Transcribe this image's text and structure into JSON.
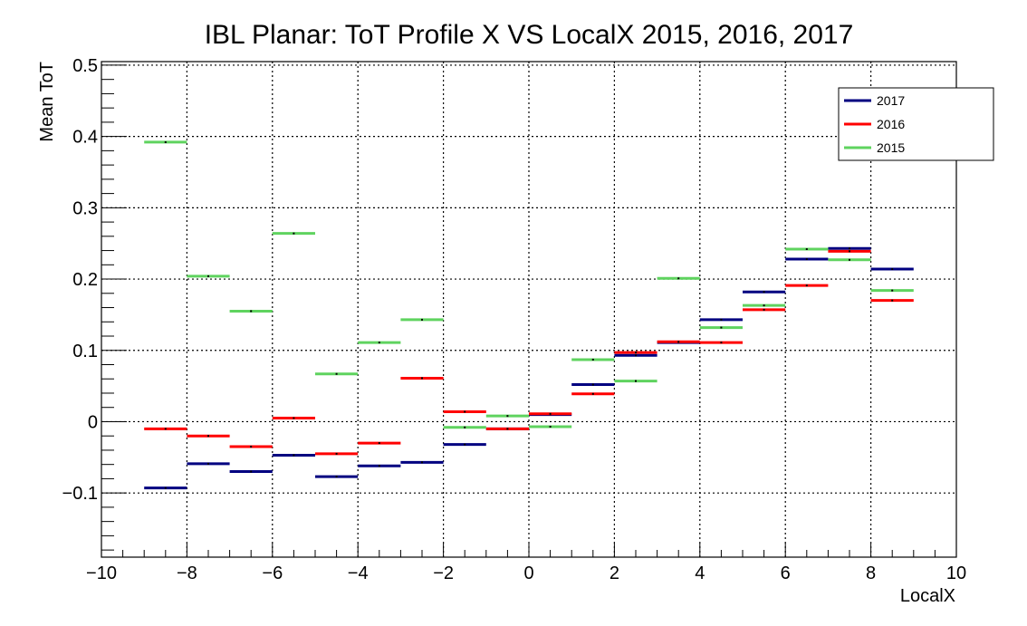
{
  "chart_data": {
    "type": "line",
    "style": "step-profile",
    "title": "IBL Planar: ToT Profile X VS LocalX 2015, 2016, 2017",
    "xlabel": "LocalX",
    "ylabel": "Mean ToT",
    "xlim": [
      -10,
      10
    ],
    "ylim": [
      -0.19,
      0.505
    ],
    "grid": true,
    "legend_position": "top-right",
    "x_ticks": [
      -10,
      -8,
      -6,
      -4,
      -2,
      0,
      2,
      4,
      6,
      8,
      10
    ],
    "x_tick_labels": [
      "−10",
      "−8",
      "−6",
      "−4",
      "−2",
      "0",
      "2",
      "4",
      "6",
      "8",
      "10"
    ],
    "y_ticks": [
      -0.1,
      0,
      0.1,
      0.2,
      0.3,
      0.4,
      0.5
    ],
    "y_tick_labels": [
      "−0.1",
      "0",
      "0.1",
      "0.2",
      "0.3",
      "0.4",
      "0.5"
    ],
    "bin_edges": [
      -9,
      -8,
      -7,
      -6,
      -5,
      -4,
      -3,
      -2,
      -1,
      0,
      1,
      2,
      3,
      4,
      5,
      6,
      7,
      8,
      9
    ],
    "series": [
      {
        "name": "2017",
        "color": "#000080",
        "values": [
          -0.093,
          -0.059,
          -0.07,
          -0.047,
          -0.077,
          -0.062,
          -0.057,
          -0.032,
          -0.01,
          0.01,
          0.052,
          0.093,
          0.111,
          0.143,
          0.182,
          0.228,
          0.243,
          0.214
        ]
      },
      {
        "name": "2016",
        "color": "#ff0000",
        "values": [
          -0.01,
          -0.02,
          -0.035,
          0.005,
          -0.045,
          -0.03,
          0.061,
          0.014,
          -0.01,
          0.011,
          0.039,
          0.097,
          0.112,
          0.111,
          0.157,
          0.191,
          0.239,
          0.17
        ]
      },
      {
        "name": "2015",
        "color": "#5fd35f",
        "values": [
          0.392,
          0.204,
          0.155,
          0.264,
          0.067,
          0.111,
          0.143,
          -0.008,
          0.008,
          -0.007,
          0.087,
          0.057,
          0.201,
          0.132,
          0.163,
          0.242,
          0.227,
          0.184
        ]
      }
    ]
  }
}
